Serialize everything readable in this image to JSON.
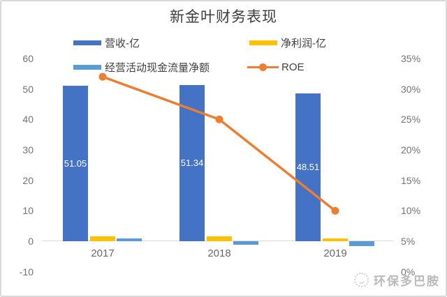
{
  "title": "新金叶财务表现",
  "watermark": {
    "text": "环保多巴胺"
  },
  "chart_data": {
    "type": "combo",
    "categories": [
      "2017",
      "2018",
      "2019"
    ],
    "series": [
      {
        "key": "revenue",
        "name": "营收-亿",
        "type": "bar",
        "axis": "left",
        "color": "#4472C4",
        "values": [
          51.05,
          51.34,
          48.51
        ],
        "data_labels": [
          "51.05",
          "51.34",
          "48.51"
        ]
      },
      {
        "key": "net-profit",
        "name": "净利润-亿",
        "type": "bar",
        "axis": "left",
        "color": "#FFC000",
        "values": [
          1.5,
          1.6,
          1.0
        ]
      },
      {
        "key": "op-cashflow",
        "name": "经营活动现金流量净额",
        "type": "bar",
        "axis": "left",
        "color": "#5B9BD5",
        "values": [
          0.9,
          -1.1,
          -1.5
        ]
      },
      {
        "key": "roe",
        "name": "ROE",
        "type": "line",
        "axis": "right",
        "color": "#ED7D31",
        "values": [
          32,
          25,
          10
        ],
        "unit": "%"
      }
    ],
    "left_axis": {
      "min": -10,
      "max": 60,
      "step": 10,
      "labels": [
        "60",
        "50",
        "40",
        "30",
        "20",
        "10",
        "0",
        "-10"
      ],
      "values": [
        60,
        50,
        40,
        30,
        20,
        10,
        0,
        -10
      ]
    },
    "right_axis": {
      "min": 0,
      "max": 35,
      "step": 5,
      "labels": [
        "35%",
        "30%",
        "25%",
        "20%",
        "15%",
        "10%",
        "5%",
        "0%"
      ],
      "values": [
        35,
        30,
        25,
        20,
        15,
        10,
        5,
        0
      ]
    },
    "gridlines": "baseline-only",
    "bar_label_color": "#ffffff",
    "axis_label_color": "#737373"
  }
}
